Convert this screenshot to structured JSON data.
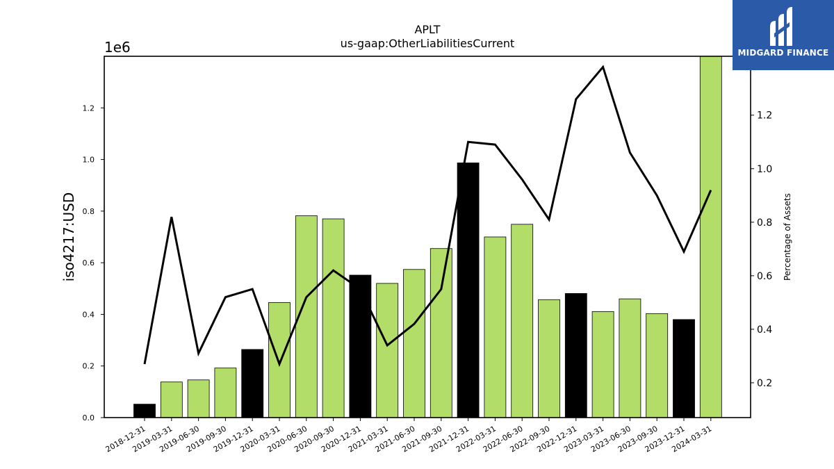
{
  "chart_data": {
    "type": "bar",
    "title": "APLT",
    "subtitle": "us-gaap:OtherLiabilitiesCurrent",
    "ylabel": "iso4217:USD",
    "y_offset_label": "1e6",
    "y2label": "Percentage of Assets",
    "categories": [
      "2018-12-31",
      "2019-03-31",
      "2019-06-30",
      "2019-09-30",
      "2019-12-31",
      "2020-03-31",
      "2020-06-30",
      "2020-09-30",
      "2020-12-31",
      "2021-03-31",
      "2021-06-30",
      "2021-09-30",
      "2021-12-31",
      "2022-03-31",
      "2022-06-30",
      "2022-09-30",
      "2022-12-31",
      "2023-03-31",
      "2023-06-30",
      "2023-09-30",
      "2023-12-31",
      "2024-03-31"
    ],
    "bar_colors": [
      "#000000",
      "#b2dd68",
      "#b2dd68",
      "#b2dd68",
      "#000000",
      "#b2dd68",
      "#b2dd68",
      "#b2dd68",
      "#000000",
      "#b2dd68",
      "#b2dd68",
      "#b2dd68",
      "#000000",
      "#b2dd68",
      "#b2dd68",
      "#b2dd68",
      "#000000",
      "#b2dd68",
      "#b2dd68",
      "#b2dd68",
      "#000000",
      "#b2dd68"
    ],
    "series": [
      {
        "kind": "bar",
        "axis": "left",
        "values": [
          52000,
          138000,
          146000,
          192000,
          264000,
          446000,
          782000,
          770000,
          552000,
          520000,
          574000,
          655000,
          987000,
          700000,
          749000,
          457000,
          481000,
          411000,
          460000,
          403000,
          380000,
          1400000
        ]
      },
      {
        "kind": "line",
        "axis": "right",
        "color": "#000000",
        "values": [
          0.27,
          0.82,
          0.31,
          0.52,
          0.55,
          0.27,
          0.52,
          0.62,
          0.55,
          0.34,
          0.42,
          0.55,
          1.1,
          1.09,
          0.96,
          0.81,
          1.26,
          1.38,
          1.06,
          0.9,
          0.69,
          0.92
        ]
      }
    ],
    "ylim": [
      0,
      1400000
    ],
    "y2lim": [
      0.07,
      1.42
    ],
    "yticks": [
      "0.0",
      "0.2",
      "0.4",
      "0.6",
      "0.8",
      "1.0",
      "1.2"
    ],
    "y2ticks": [
      "0.2",
      "0.4",
      "0.6",
      "0.8",
      "1.0",
      "1.2"
    ],
    "grid": false,
    "legend": "none"
  },
  "logo": {
    "text": "MIDGARD FINANCE",
    "icon": "midgard-logo-icon",
    "color": "#2b5aa8"
  }
}
